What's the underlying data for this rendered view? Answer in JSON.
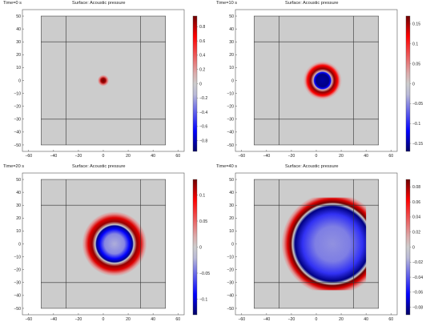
{
  "chart_data": [
    {
      "type": "heatmap",
      "time_label": "Time=0 s",
      "title": "Surface: Acoustic pressure",
      "xlim": [
        -65,
        65
      ],
      "ylim": [
        -55,
        55
      ],
      "xticks": [
        -60,
        -40,
        -20,
        0,
        20,
        40,
        60
      ],
      "yticks": [
        50,
        40,
        30,
        20,
        10,
        0,
        -10,
        -20,
        -30,
        -40,
        -50
      ],
      "domain": {
        "x": [
          -50,
          50
        ],
        "y": [
          -50,
          50
        ]
      },
      "grid_lines": {
        "x": [
          -30,
          30
        ],
        "y": [
          -30,
          30
        ]
      },
      "colorbar": {
        "min": -0.95,
        "max": 0.95,
        "ticks": [
          0.8,
          0.6,
          0.4,
          0.2,
          0,
          -0.2,
          -0.4,
          -0.6,
          -0.8
        ]
      },
      "field": {
        "center": [
          0,
          0
        ],
        "rings": [
          {
            "r": 0,
            "value": 0.95
          },
          {
            "r": 1.8,
            "value": 0.85
          },
          {
            "r": 3.2,
            "value": 0.3
          },
          {
            "r": 4.5,
            "value": 0
          }
        ]
      }
    },
    {
      "type": "heatmap",
      "time_label": "Time=10 s",
      "title": "Surface: Acoustic pressure",
      "xlim": [
        -65,
        65
      ],
      "ylim": [
        -55,
        55
      ],
      "xticks": [
        -60,
        -40,
        -20,
        0,
        20,
        40,
        60
      ],
      "yticks": [
        50,
        40,
        30,
        20,
        10,
        0,
        -10,
        -20,
        -30,
        -40,
        -50
      ],
      "domain": {
        "x": [
          -50,
          50
        ],
        "y": [
          -50,
          50
        ]
      },
      "grid_lines": {
        "x": [
          -30,
          30
        ],
        "y": [
          -30,
          30
        ]
      },
      "colorbar": {
        "min": -0.17,
        "max": 0.17,
        "ticks": [
          0.15,
          0.1,
          0.05,
          0,
          -0.05,
          -0.1,
          -0.15
        ]
      },
      "field": {
        "center": [
          5,
          0
        ],
        "rings": [
          {
            "r": 0,
            "value": -0.15
          },
          {
            "r": 5,
            "value": -0.16
          },
          {
            "r": 6.5,
            "value": -0.12
          },
          {
            "r": 7.5,
            "value": 0.02
          },
          {
            "r": 9.5,
            "value": 0.16
          },
          {
            "r": 12,
            "value": 0.12
          },
          {
            "r": 14,
            "value": 0.03
          },
          {
            "r": 15.5,
            "value": 0
          }
        ]
      }
    },
    {
      "type": "heatmap",
      "time_label": "Time=20 s",
      "title": "Surface: Acoustic pressure",
      "xlim": [
        -65,
        65
      ],
      "ylim": [
        -55,
        55
      ],
      "xticks": [
        -60,
        -40,
        -20,
        0,
        20,
        40,
        60
      ],
      "yticks": [
        50,
        40,
        30,
        20,
        10,
        0,
        -10,
        -20,
        -30,
        -40,
        -50
      ],
      "domain": {
        "x": [
          -50,
          50
        ],
        "y": [
          -50,
          50
        ]
      },
      "grid_lines": {
        "x": [
          -30,
          30
        ],
        "y": [
          -30,
          30
        ]
      },
      "colorbar": {
        "min": -0.13,
        "max": 0.13,
        "ticks": [
          0.1,
          0.05,
          0,
          -0.05,
          -0.1
        ]
      },
      "field": {
        "center": [
          9,
          0
        ],
        "rings": [
          {
            "r": 0,
            "value": -0.025
          },
          {
            "r": 8,
            "value": -0.04
          },
          {
            "r": 12,
            "value": -0.09
          },
          {
            "r": 14.5,
            "value": -0.12
          },
          {
            "r": 15.5,
            "value": 0
          },
          {
            "r": 18,
            "value": 0.12
          },
          {
            "r": 21,
            "value": 0.1
          },
          {
            "r": 24,
            "value": 0.03
          },
          {
            "r": 26,
            "value": 0
          }
        ]
      }
    },
    {
      "type": "heatmap",
      "time_label": "Time=40 s",
      "title": "Surface: Acoustic pressure",
      "xlim": [
        -65,
        65
      ],
      "ylim": [
        -55,
        55
      ],
      "xticks": [
        -60,
        -40,
        -20,
        0,
        20,
        40,
        60
      ],
      "yticks": [
        50,
        40,
        30,
        20,
        10,
        0,
        -10,
        -20,
        -30,
        -40,
        -50
      ],
      "domain": {
        "x": [
          -50,
          50
        ],
        "y": [
          -50,
          50
        ]
      },
      "grid_lines": {
        "x": [
          -30,
          30
        ],
        "y": [
          -30,
          30
        ]
      },
      "colorbar": {
        "min": -0.09,
        "max": 0.09,
        "ticks": [
          0.08,
          0.06,
          0.04,
          0.02,
          0,
          -0.02,
          -0.04,
          -0.06,
          -0.08
        ]
      },
      "field": {
        "center": [
          13,
          0
        ],
        "clip_x": [
          -50,
          40
        ],
        "clip_y": [
          -36,
          36
        ],
        "rings": [
          {
            "r": 0,
            "value": -0.025
          },
          {
            "r": 14,
            "value": -0.03
          },
          {
            "r": 24,
            "value": -0.05
          },
          {
            "r": 30,
            "value": -0.085
          },
          {
            "r": 32,
            "value": 0
          },
          {
            "r": 33.5,
            "value": 0.09
          },
          {
            "r": 36,
            "value": 0.07
          },
          {
            "r": 39,
            "value": 0.02
          },
          {
            "r": 41,
            "value": 0
          }
        ]
      }
    }
  ]
}
